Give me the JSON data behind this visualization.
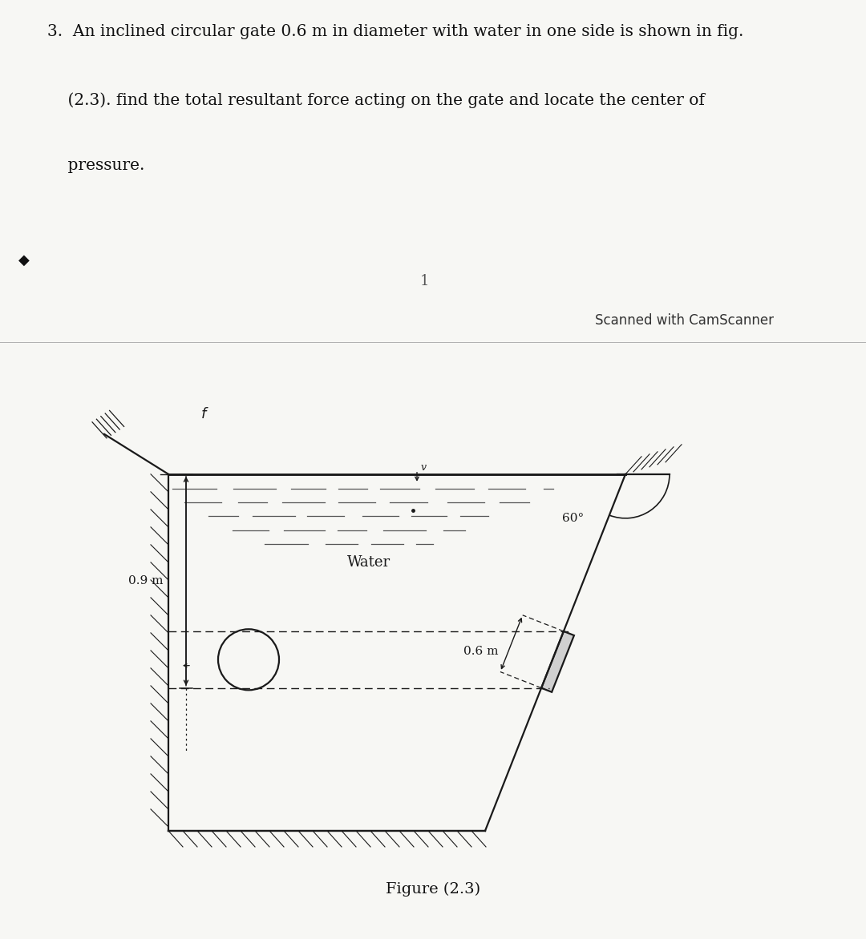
{
  "bg_top": "#f7f7f4",
  "bg_bottom": "#e5e5e2",
  "text_line1": "3.  An inclined circular gate 0.6 m in diameter with water in one side is shown in fig.",
  "text_line2": "    (2.3). find the total resultant force acting on the gate and locate the center of",
  "text_line3": "    pressure.",
  "page_number": "1",
  "scanned_text": "Scanned with CamScanner",
  "figure_caption": "Figure (2.3)",
  "water_label": "Water",
  "dim_09": "0.9 m",
  "dim_06": "0.6 m",
  "angle_label": "60°",
  "lc": "#1a1a1a"
}
